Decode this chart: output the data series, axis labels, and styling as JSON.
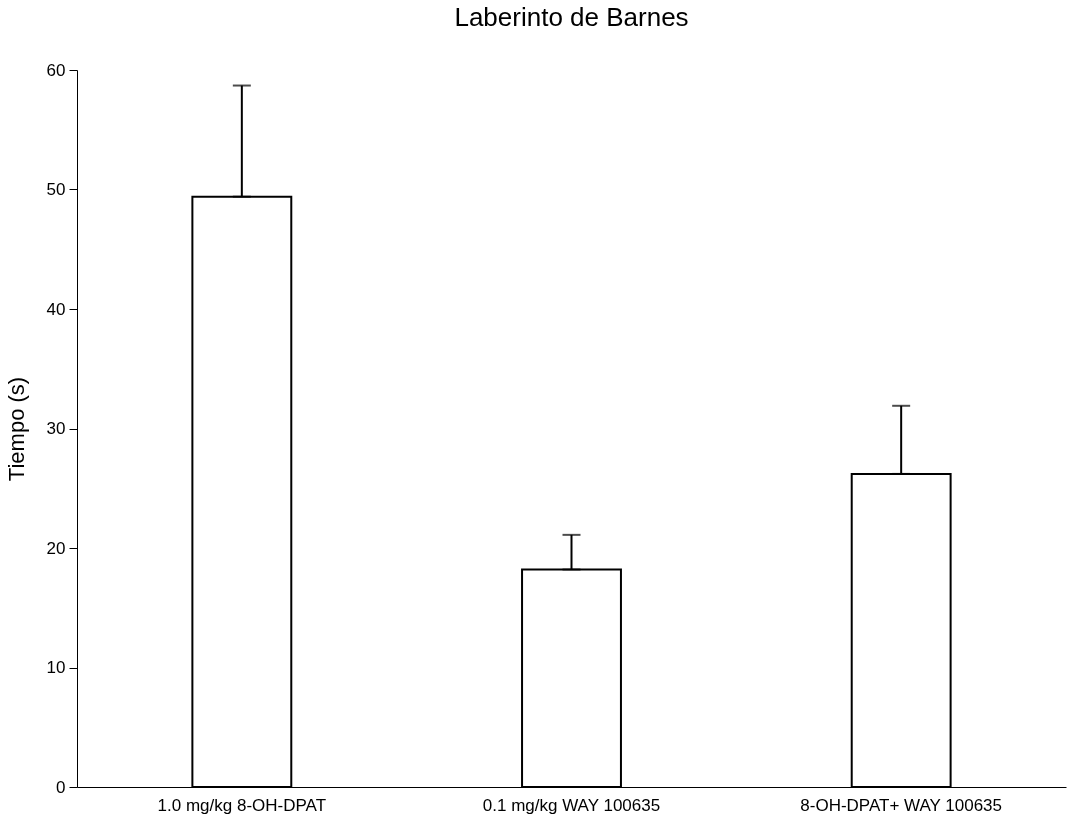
{
  "chart_data": {
    "type": "bar",
    "title": "Laberinto de Barnes",
    "ylabel": "Tiempo (s)",
    "categories": [
      "1.0 mg/kg 8-OH-DPAT",
      "0.1 mg/kg WAY 100635",
      "8-OH-DPAT+ WAY 100635"
    ],
    "values": [
      49.4,
      18.2,
      26.2
    ],
    "errors": [
      [
        49.4,
        58.7
      ],
      [
        18.2,
        21.1
      ],
      [
        26.2,
        31.9
      ]
    ],
    "color": "#ffffff",
    "ylim": [
      0,
      60
    ],
    "yticks": [
      0,
      10,
      20,
      30,
      40,
      50,
      60
    ],
    "grid": false
  }
}
